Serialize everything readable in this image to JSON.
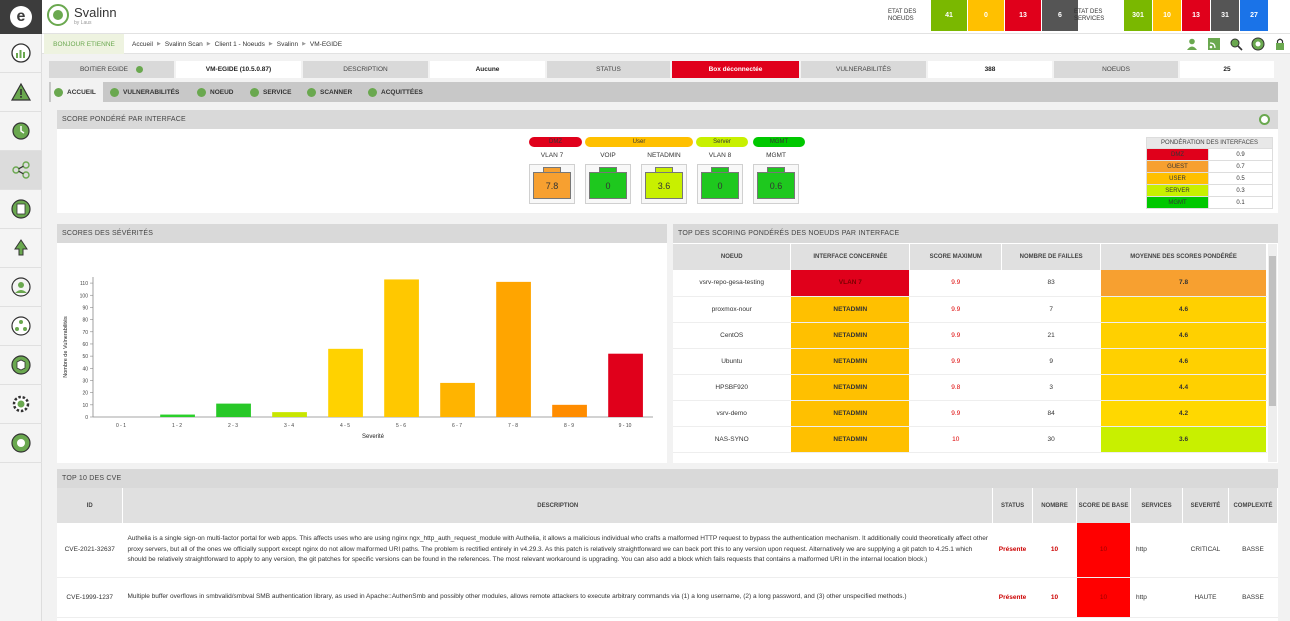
{
  "brand": {
    "name": "Svalinn",
    "sub": "by Laus"
  },
  "header_stats": {
    "nodes_label": "ETAT DES NOEUDS",
    "nodes": [
      {
        "value": "41",
        "color": "#7ab800"
      },
      {
        "value": "0",
        "color": "#ffc000"
      },
      {
        "value": "13",
        "color": "#e0001b"
      },
      {
        "value": "6",
        "color": "#555555"
      }
    ],
    "services_label": "ETAT DES SERVICES",
    "services": [
      {
        "value": "301",
        "color": "#7ab800"
      },
      {
        "value": "10",
        "color": "#ffc000"
      },
      {
        "value": "13",
        "color": "#e0001b"
      },
      {
        "value": "31",
        "color": "#555555"
      },
      {
        "value": "27",
        "color": "#1a73e8"
      }
    ]
  },
  "greeting": "BONJOUR ETIENNE",
  "breadcrumb": [
    "Accueil",
    "Svalinn Scan",
    "Client 1 - Noeuds",
    "Svalinn",
    "VM-EGIDE"
  ],
  "info_bar": {
    "box_label": "BOITIER EGIDE",
    "box_value": "VM-EGIDE (10.5.0.87)",
    "desc_label": "DESCRIPTION",
    "desc_value": "Aucune",
    "status_label": "STATUS",
    "status_value": "Box déconnectée",
    "vuln_label": "VULNERABILITÉS",
    "vuln_value": "388",
    "nodes_label": "NOEUDS",
    "nodes_value": "25"
  },
  "tabs": [
    "ACCUEIL",
    "VULNERABILITÉS",
    "NOEUD",
    "SERVICE",
    "SCANNER",
    "ACQUITTÉES"
  ],
  "weighted_panel": {
    "title": "SCORE PONDÉRÉ PAR INTERFACE",
    "groups": [
      {
        "label": "DMZ",
        "color": "#e0001b"
      },
      {
        "label": "User",
        "color": "#ffc000"
      },
      {
        "label": "Server",
        "color": "#c8f000"
      },
      {
        "label": "MGMT",
        "color": "#00c800"
      }
    ],
    "ports": [
      {
        "name": "VLAN 7",
        "score": "7.8",
        "color": "#f7a030"
      },
      {
        "name": "VOIP",
        "score": "0",
        "color": "#1ec81e"
      },
      {
        "name": "NETADMIN",
        "score": "3.6",
        "color": "#c8f000"
      },
      {
        "name": "VLAN 8",
        "score": "0",
        "color": "#1ec81e"
      },
      {
        "name": "MGMT",
        "score": "0.6",
        "color": "#1ec81e"
      }
    ],
    "weights_title": "PONDÉRATION DES INTERFACES",
    "weights": [
      {
        "name": "DMZ",
        "value": "0.9",
        "color": "#e0001b"
      },
      {
        "name": "GUEST",
        "value": "0.7",
        "color": "#f7a030"
      },
      {
        "name": "USER",
        "value": "0.5",
        "color": "#ffc000"
      },
      {
        "name": "SERVER",
        "value": "0.3",
        "color": "#c8f000"
      },
      {
        "name": "MGMT",
        "value": "0.1",
        "color": "#00c800"
      }
    ]
  },
  "severity_panel": {
    "title": "SCORES DES SÉVÉRITÉS"
  },
  "chart_data": {
    "type": "bar",
    "title": "",
    "xlabel": "Severité",
    "ylabel": "Nombre de Vulnerabilités",
    "categories": [
      "0 - 1",
      "1 - 2",
      "2 - 3",
      "3 - 4",
      "4 - 5",
      "5 - 6",
      "6 - 7",
      "7 - 8",
      "8 - 9",
      "9 - 10"
    ],
    "values": [
      0,
      2,
      11,
      4,
      56,
      113,
      28,
      111,
      10,
      52
    ],
    "colors": [
      "#00c800",
      "#2ad02a",
      "#28c828",
      "#c8e600",
      "#ffd200",
      "#ffc800",
      "#ffb400",
      "#ffa500",
      "#ff8c00",
      "#e0001b"
    ],
    "ylim": [
      0,
      115
    ],
    "yticks": [
      0,
      10,
      20,
      30,
      40,
      50,
      60,
      70,
      80,
      90,
      100,
      110
    ]
  },
  "top_scoring": {
    "title": "TOP DES SCORING PONDÉRÉS DES NOEUDS PAR INTERFACE",
    "columns": [
      "NOEUD",
      "INTERFACE CONCERNÉE",
      "SCORE MAXIMUM",
      "NOMBRE DE FAILLES",
      "MOYENNE DES SCORES PONDÉRÉE"
    ],
    "rows": [
      {
        "node": "vsrv-repo-gesa-testing",
        "iface": "VLAN 7",
        "iface_color": "#e0001b",
        "max": "9.9",
        "count": "83",
        "avg": "7.8",
        "avg_color": "#f7a030"
      },
      {
        "node": "proxmox-nour",
        "iface": "NETADMIN",
        "iface_color": "#ffc000",
        "max": "9.9",
        "count": "7",
        "avg": "4.6",
        "avg_color": "#ffd000"
      },
      {
        "node": "CentOS",
        "iface": "NETADMIN",
        "iface_color": "#ffc000",
        "max": "9.9",
        "count": "21",
        "avg": "4.6",
        "avg_color": "#ffd000"
      },
      {
        "node": "Ubuntu",
        "iface": "NETADMIN",
        "iface_color": "#ffc000",
        "max": "9.9",
        "count": "9",
        "avg": "4.6",
        "avg_color": "#ffd000"
      },
      {
        "node": "HPSBF920",
        "iface": "NETADMIN",
        "iface_color": "#ffc000",
        "max": "9.8",
        "count": "3",
        "avg": "4.4",
        "avg_color": "#ffd000"
      },
      {
        "node": "vsrv-demo",
        "iface": "NETADMIN",
        "iface_color": "#ffc000",
        "max": "9.9",
        "count": "84",
        "avg": "4.2",
        "avg_color": "#ffd800"
      },
      {
        "node": "NAS-SYNO",
        "iface": "NETADMIN",
        "iface_color": "#ffc000",
        "max": "10",
        "count": "30",
        "avg": "3.6",
        "avg_color": "#c8f000"
      }
    ]
  },
  "cve_panel": {
    "title": "TOP 10 DES CVE",
    "columns": [
      "ID",
      "DESCRIPTION",
      "STATUS",
      "NOMBRE",
      "SCORE DE BASE",
      "SERVICES",
      "SEVERITÉ",
      "COMPLEXITÉ"
    ],
    "rows": [
      {
        "id": "CVE-2021-32637",
        "desc": "Authelia is a single sign-on multi-factor portal for web apps. This affects uses who are using nginx ngx_http_auth_request_module with Authelia, it allows a malicious individual who crafts a malformed HTTP request to bypass the authentication mechanism. It additionally could theoretically affect other proxy servers, but all of the ones we officially support except nginx do not allow malformed URI paths. The problem is rectified entirely in v4.29.3. As this patch is relatively straightforward we can back port this to any version upon request. Alternatively we are supplying a git patch to 4.25.1 which should be relatively straightforward to apply to any version, the git patches for specific versions can be found in the references. The most relevant workaround is upgrading. You can also add a block which fails requests that contains a malformed URI in the internal location block.)",
        "status": "Présente",
        "count": "10",
        "score": "10",
        "service": "http",
        "severity": "CRITICAL",
        "complexity": "BASSE"
      },
      {
        "id": "CVE-1999-1237",
        "desc": "Multiple buffer overflows in smbvalid/smbval SMB authentication library, as used in Apache::AuthenSmb and possibly other modules, allows remote attackers to execute arbitrary commands via (1) a long username, (2) a long password, and (3) other unspecified methods.)",
        "status": "Présente",
        "count": "10",
        "score": "10",
        "service": "http",
        "severity": "HAUTE",
        "complexity": "BASSE"
      }
    ]
  }
}
